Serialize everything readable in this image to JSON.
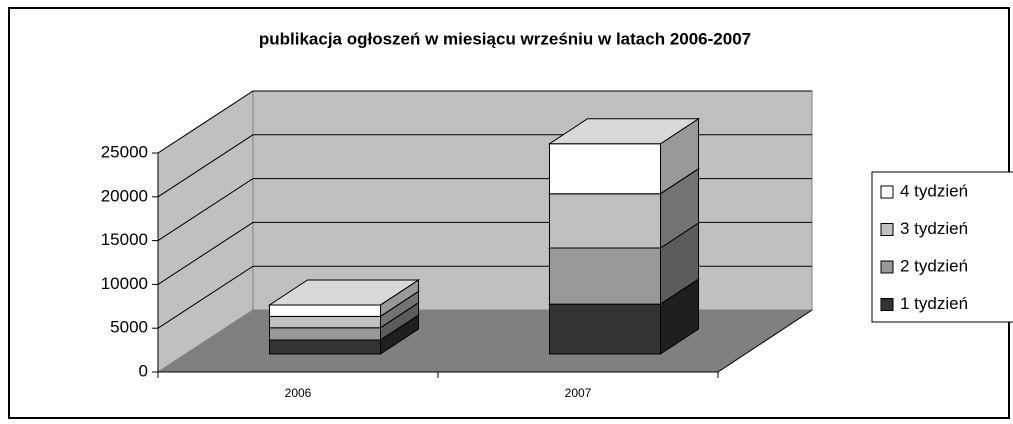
{
  "chart_data": {
    "type": "bar3d-stacked",
    "title": "publikacja ogłoszeń w miesiącu wrześniu w latach 2006-2007",
    "categories": [
      "2006",
      "2007"
    ],
    "series": [
      {
        "name": "1 tydzień",
        "color": "#333333",
        "values": [
          1600,
          5700
        ]
      },
      {
        "name": "2 tydzień",
        "color": "#999999",
        "values": [
          1400,
          6400
        ]
      },
      {
        "name": "3 tydzień",
        "color": "#c0c0c0",
        "values": [
          1300,
          6200
        ]
      },
      {
        "name": "4 tydzień",
        "color": "#ffffff",
        "values": [
          1300,
          5700
        ]
      }
    ],
    "ylim": [
      0,
      25000
    ],
    "yticks": [
      0,
      5000,
      10000,
      15000,
      20000,
      25000
    ],
    "grid": true,
    "legend": "right"
  }
}
